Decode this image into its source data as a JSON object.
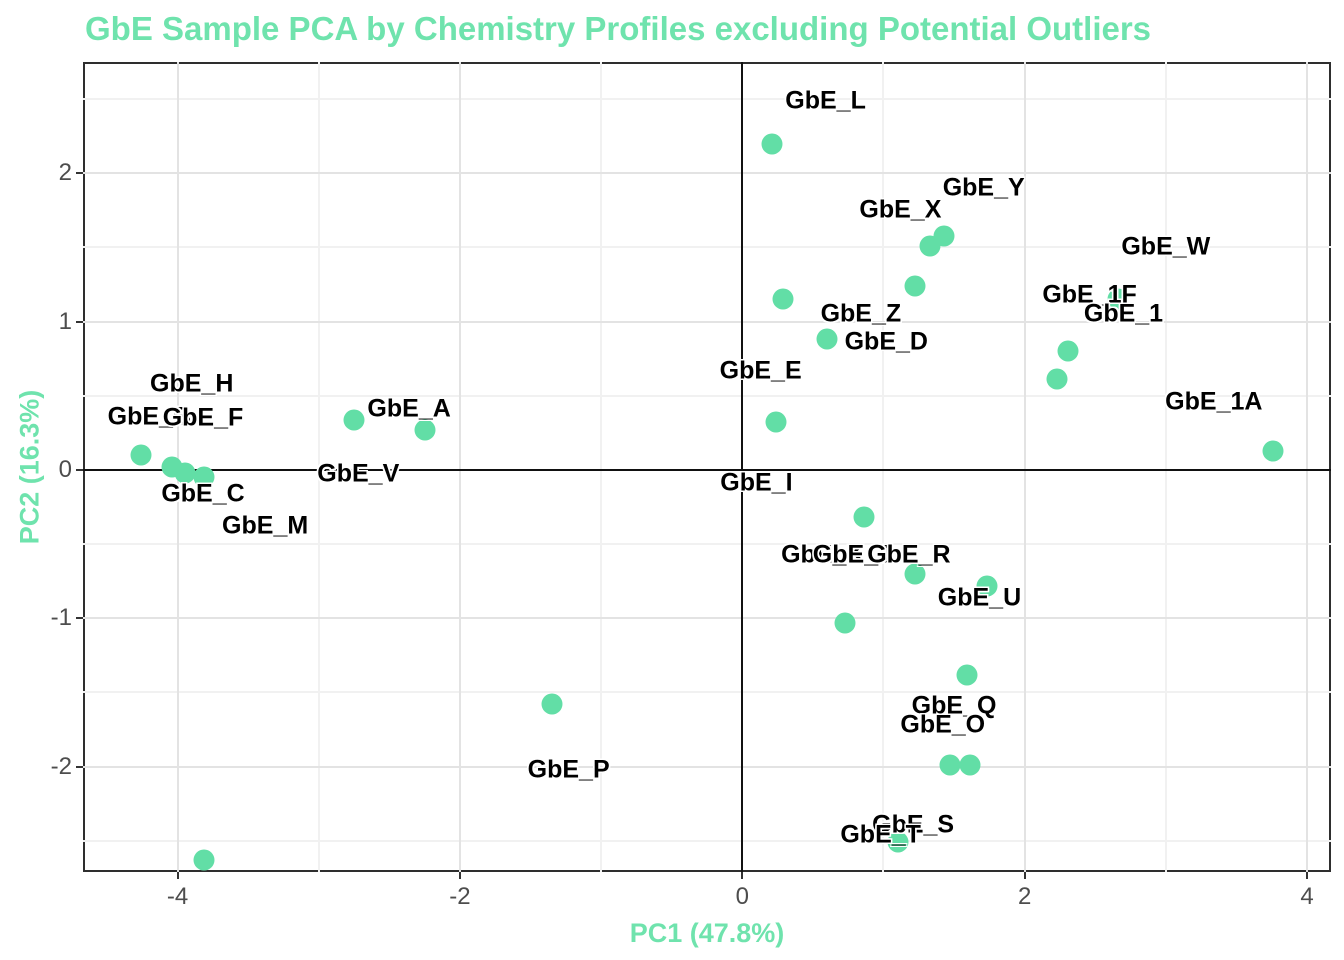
{
  "chart_data": {
    "type": "scatter",
    "title": "GbE Sample PCA by Chemistry Profiles excluding Potential Outliers",
    "xlabel": "PC1 (47.8%)",
    "ylabel": "PC2 (16.3%)",
    "xlim": [
      -4.67,
      4.17
    ],
    "ylim": [
      -2.71,
      2.75
    ],
    "x_ticks": [
      -4,
      -2,
      0,
      2,
      4
    ],
    "x_minor_gridlines": [
      -3,
      -1,
      1,
      3
    ],
    "y_ticks": [
      -2,
      -1,
      0,
      1,
      2
    ],
    "y_minor_gridlines": [
      -2.5,
      -1.5,
      -0.5,
      0.5,
      1.5,
      2.5
    ],
    "zero_lines": {
      "vertical_at_x": 0,
      "horizontal_at_y": 0
    },
    "grid": "major and minor, light gray on white panel",
    "legend": "none",
    "points": [
      {
        "x": -4.26,
        "y": 0.1
      },
      {
        "x": -4.04,
        "y": 0.02
      },
      {
        "x": -3.95,
        "y": -0.02
      },
      {
        "x": -3.81,
        "y": -0.05
      },
      {
        "x": -2.75,
        "y": 0.34
      },
      {
        "x": -2.25,
        "y": 0.27
      },
      {
        "x": 0.21,
        "y": 2.2
      },
      {
        "x": 1.33,
        "y": 1.51
      },
      {
        "x": 1.43,
        "y": 1.58
      },
      {
        "x": 1.22,
        "y": 1.24
      },
      {
        "x": 0.29,
        "y": 1.15
      },
      {
        "x": 0.6,
        "y": 0.88
      },
      {
        "x": 2.31,
        "y": 0.8
      },
      {
        "x": 2.23,
        "y": 0.61
      },
      {
        "x": 2.66,
        "y": 1.15
      },
      {
        "x": 0.24,
        "y": 0.32
      },
      {
        "x": 0.86,
        "y": -0.32
      },
      {
        "x": 1.22,
        "y": -0.7
      },
      {
        "x": 1.73,
        "y": -0.78
      },
      {
        "x": 0.73,
        "y": -1.03
      },
      {
        "x": -1.35,
        "y": -1.58
      },
      {
        "x": 1.59,
        "y": -1.38
      },
      {
        "x": 1.47,
        "y": -1.99
      },
      {
        "x": 1.61,
        "y": -1.99
      },
      {
        "x": 1.1,
        "y": -2.51
      },
      {
        "x": 3.76,
        "y": 0.13
      },
      {
        "x": -3.81,
        "y": -2.63
      }
    ],
    "labels": [
      {
        "text": "GbE_B",
        "x": -4.2,
        "y": 0.36
      },
      {
        "text": "GbE_H",
        "x": -3.9,
        "y": 0.58
      },
      {
        "text": "GbE_F",
        "x": -3.82,
        "y": 0.35
      },
      {
        "text": "GbE_C",
        "x": -3.82,
        "y": -0.16
      },
      {
        "text": "GbE_M",
        "x": -3.38,
        "y": -0.38
      },
      {
        "text": "GbE_V",
        "x": -2.72,
        "y": -0.03
      },
      {
        "text": "GbE_A",
        "x": -2.36,
        "y": 0.41
      },
      {
        "text": "GbE_L",
        "x": 0.59,
        "y": 2.49
      },
      {
        "text": "GbE_Y",
        "x": 1.71,
        "y": 1.9
      },
      {
        "text": "GbE_X",
        "x": 1.12,
        "y": 1.75
      },
      {
        "text": "GbE_Z",
        "x": 0.84,
        "y": 1.05
      },
      {
        "text": "GbE_D",
        "x": 1.02,
        "y": 0.86
      },
      {
        "text": "GbE_E",
        "x": 0.13,
        "y": 0.67
      },
      {
        "text": "GbE_I",
        "x": 0.1,
        "y": -0.09
      },
      {
        "text": "GbE_K",
        "x": 0.57,
        "y": -0.57
      },
      {
        "text": "GbE_J",
        "x": 0.78,
        "y": -0.57
      },
      {
        "text": "GbE_R",
        "x": 1.18,
        "y": -0.57
      },
      {
        "text": "GbE_U",
        "x": 1.68,
        "y": -0.86
      },
      {
        "text": "GbE_Q",
        "x": 1.5,
        "y": -1.59
      },
      {
        "text": "GbE_O",
        "x": 1.42,
        "y": -1.72
      },
      {
        "text": "GbE_P",
        "x": -1.23,
        "y": -2.02
      },
      {
        "text": "GbE_S",
        "x": 1.21,
        "y": -2.39
      },
      {
        "text": "GbE_T",
        "x": 0.98,
        "y": -2.46
      },
      {
        "text": "GbE_W",
        "x": 3.0,
        "y": 1.5
      },
      {
        "text": "GbE_1F",
        "x": 2.46,
        "y": 1.18
      },
      {
        "text": "GbE_1",
        "x": 2.7,
        "y": 1.05
      },
      {
        "text": "GbE_1A",
        "x": 3.34,
        "y": 0.46
      }
    ],
    "colors": {
      "point": "#62DEA6",
      "title": "#6FE3AD",
      "axis_title": "#6FE3AD",
      "point_label": "#000000",
      "tick_label": "#4D4D4D",
      "tick_mark": "#333333",
      "grid_major": "#E3E3E3",
      "grid_minor": "#F1F1F1",
      "panel_border": "#2E2E2E",
      "zero_line": "#111111",
      "background": "#FFFFFF"
    }
  }
}
